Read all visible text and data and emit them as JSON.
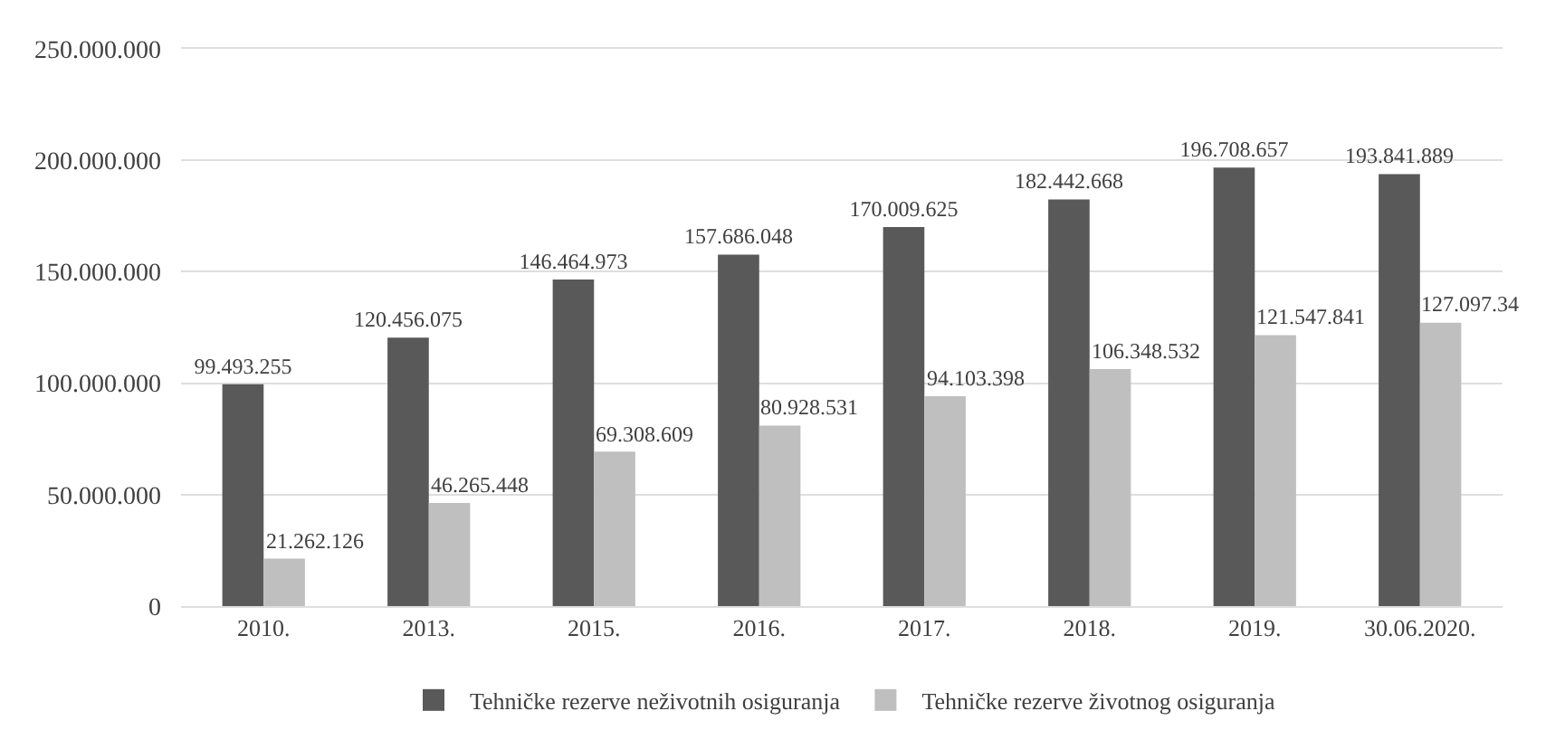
{
  "chart_data": {
    "type": "bar",
    "categories": [
      "2010.",
      "2013.",
      "2015.",
      "2016.",
      "2017.",
      "2018.",
      "2019.",
      "30.06.2020."
    ],
    "series": [
      {
        "name": "Tehničke rezerve neživotnih osiguranja",
        "color": "#595959",
        "values": [
          99493255,
          120456075,
          146464973,
          157686048,
          170009625,
          182442668,
          196708657,
          193841889
        ],
        "value_labels": [
          "99.493.255",
          "120.456.075",
          "146.464.973",
          "157.686.048",
          "170.009.625",
          "182.442.668",
          "196.708.657",
          "193.841.889"
        ]
      },
      {
        "name": "Tehničke rezerve životnog osiguranja",
        "color": "#bfbfbf",
        "values": [
          21262126,
          46265448,
          69308609,
          80928531,
          94103398,
          106348532,
          121547841,
          127097340
        ],
        "value_labels": [
          "21.262.126",
          "46.265.448",
          "69.308.609",
          "80.928.531",
          "94.103.398",
          "106.348.532",
          "121.547.841",
          "127.097.34"
        ]
      }
    ],
    "ylim": [
      0,
      250000000
    ],
    "yticks": [
      {
        "value": 0,
        "label": "0"
      },
      {
        "value": 50000000,
        "label": "50.000.000"
      },
      {
        "value": 100000000,
        "label": "100.000.000"
      },
      {
        "value": 150000000,
        "label": "150.000.000"
      },
      {
        "value": 200000000,
        "label": "200.000.000"
      },
      {
        "value": 250000000,
        "label": "250.000.000"
      }
    ],
    "grid": "y",
    "legend": "bottom"
  }
}
